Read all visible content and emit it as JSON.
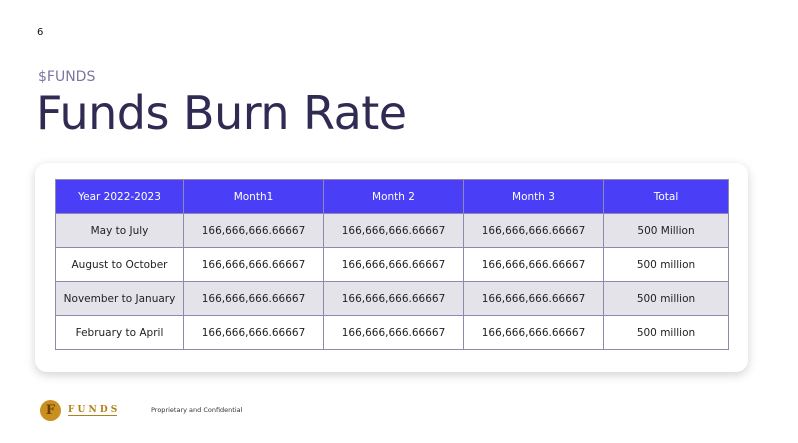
{
  "page_number": "6",
  "header": {
    "kicker": "$FUNDS",
    "title": "Funds Burn Rate"
  },
  "table": {
    "columns": [
      "Year 2022-2023",
      "Month1",
      "Month 2",
      "Month 3",
      "Total"
    ],
    "rows": [
      [
        "May to July",
        "166,666,666.66667",
        "166,666,666.66667",
        "166,666,666.66667",
        "500 Million"
      ],
      [
        "August to October",
        "166,666,666.66667",
        "166,666,666.66667",
        "166,666,666.66667",
        "500 million"
      ],
      [
        "November to January",
        "166,666,666.66667",
        "166,666,666.66667",
        "166,666,666.66667",
        "500 million"
      ],
      [
        "February to April",
        "166,666,666.66667",
        "166,666,666.66667",
        "166,666,666.66667",
        "500 million"
      ]
    ]
  },
  "footer": {
    "logo_text": "F U N D S",
    "note": "Proprietary and Confidential"
  }
}
